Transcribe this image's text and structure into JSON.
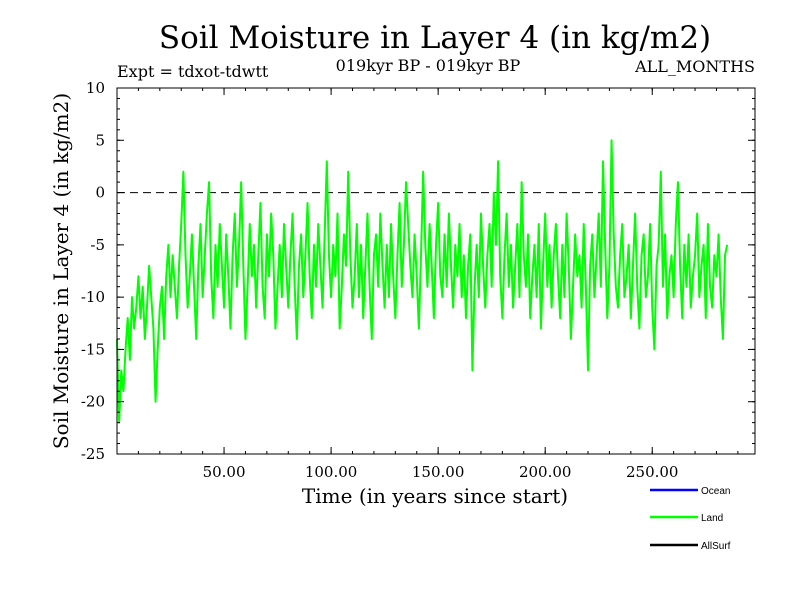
{
  "chart_data": {
    "type": "line",
    "title": "Soil Moisture in Layer 4 (in kg/m2)",
    "subtitle_left": "Expt = tdxot-tdwtt",
    "subtitle_center": "019kyr BP - 019kyr BP",
    "subtitle_right": "ALL_MONTHS",
    "xlabel": "Time (in years since start)",
    "ylabel": "Soil Moisture in Layer 4 (in kg/m2)",
    "xlim": [
      0,
      298
    ],
    "ylim": [
      -25,
      10
    ],
    "x_ticks": [
      50,
      100,
      150,
      200,
      250
    ],
    "x_tick_labels": [
      "50.00",
      "100.00",
      "150.00",
      "200.00",
      "250.00"
    ],
    "y_ticks": [
      10,
      5,
      0,
      -5,
      -10,
      -15,
      -20,
      -25
    ],
    "y_tick_labels": [
      "10",
      "5",
      "0",
      "-5",
      "-10",
      "-15",
      "-20",
      "-25"
    ],
    "reference_line": 0,
    "legend": [
      {
        "name": "Ocean",
        "color": "#0000ff"
      },
      {
        "name": "Land",
        "color": "#00ff00"
      },
      {
        "name": "AllSurf",
        "color": "#000000"
      }
    ],
    "series": [
      {
        "name": "Land",
        "color": "#00ff00",
        "x_start": 0,
        "x_step": 1,
        "values": [
          -14,
          -22,
          -17,
          -19,
          -15,
          -12,
          -16,
          -10,
          -13,
          -11,
          -8,
          -12,
          -9,
          -14,
          -11,
          -7,
          -10,
          -13,
          -20,
          -15,
          -11,
          -9,
          -14,
          -8,
          -5,
          -10,
          -6,
          -9,
          -12,
          -7,
          -3,
          2,
          -6,
          -11,
          -8,
          -4,
          -9,
          -14,
          -7,
          -3,
          -10,
          -6,
          -2,
          1,
          -8,
          -12,
          -5,
          -9,
          -3,
          -7,
          -11,
          -4,
          -8,
          -13,
          -6,
          -2,
          -9,
          -5,
          1,
          -7,
          -14,
          -9,
          -3,
          -8,
          -5,
          -11,
          -6,
          -1,
          -9,
          -12,
          -4,
          -8,
          -2,
          -6,
          -13,
          -9,
          -5,
          -10,
          -3,
          -7,
          -11,
          -6,
          -2,
          -9,
          -14,
          -7,
          -4,
          -10,
          -6,
          -1,
          -8,
          -12,
          -5,
          -9,
          -3,
          -7,
          -11,
          -4,
          3,
          -6,
          -10,
          -5,
          -8,
          -2,
          -13,
          -9,
          -4,
          -7,
          2,
          -6,
          -11,
          -8,
          -3,
          -10,
          -5,
          -12,
          -7,
          -2,
          -9,
          -14,
          -6,
          -4,
          -9,
          -2,
          -7,
          -11,
          -5,
          -10,
          -3,
          -8,
          -12,
          -6,
          -1,
          -9,
          -5,
          1,
          -3,
          -7,
          -10,
          -4,
          -8,
          -13,
          -6,
          2,
          -5,
          -9,
          -3,
          -7,
          -12,
          -5,
          -1,
          -8,
          -10,
          -4,
          -9,
          -2,
          -7,
          -11,
          -5,
          -8,
          -3,
          -10,
          -6,
          -12,
          -7,
          -4,
          -17,
          -9,
          -5,
          -10,
          -2,
          -7,
          -11,
          -6,
          -3,
          -9,
          0,
          -5,
          3,
          -8,
          -12,
          -6,
          -2,
          -9,
          -5,
          -11,
          -7,
          -3,
          -10,
          1,
          -6,
          -9,
          -4,
          -12,
          -8,
          -5,
          -10,
          -3,
          -13,
          -7,
          -2,
          -9,
          -5,
          -11,
          -6,
          -3,
          -8,
          -12,
          -5,
          -10,
          -2,
          -7,
          -14,
          -9,
          -4,
          -8,
          -6,
          -11,
          -3,
          -9,
          -17,
          -7,
          -4,
          -10,
          -6,
          -2,
          -9,
          3,
          -5,
          -12,
          -7,
          5,
          -4,
          -9,
          -11,
          -6,
          -3,
          -10,
          -8,
          -5,
          -12,
          -7,
          -2,
          -9,
          -13,
          -6,
          -4,
          -10,
          -8,
          -3,
          -11,
          -15,
          -7,
          -5,
          2,
          -9,
          -4,
          -12,
          -8,
          -6,
          -10,
          -3,
          1,
          -7,
          -12,
          -5,
          -9,
          -4,
          -11,
          -8,
          -6,
          -2,
          -10,
          -7,
          -5,
          -12,
          -3,
          -9,
          -11,
          -6,
          -8,
          -4,
          -10,
          -14,
          -6,
          -5
        ]
      }
    ]
  }
}
